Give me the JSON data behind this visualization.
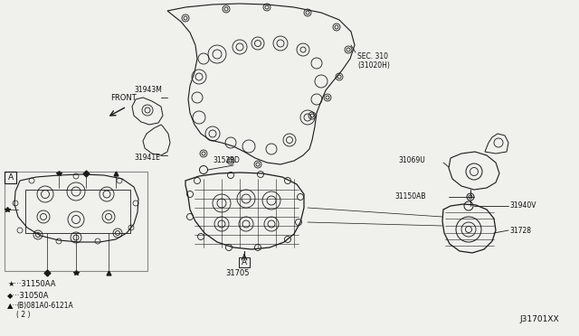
{
  "bg_color": "#f0f0ec",
  "labels": {
    "sec310": "SEC. 310\n(31020H)",
    "31943M": "31943M",
    "31941E": "31941E",
    "31528D": "31528D",
    "31705": "31705",
    "31069U": "31069U",
    "31150AB": "31150AB",
    "31940V": "31940V",
    "31728": "31728",
    "front": "FRONT",
    "view_A": "A",
    "legend1": "★···31150AA",
    "legend2": "◆···31050A",
    "legend3": "▲···",
    "legend3b": "(B)081A0-6121A",
    "legend3c": "( 2 )",
    "diagram_code": "J31701XX"
  },
  "fs": 5.5,
  "lc": "#1a1a1a"
}
